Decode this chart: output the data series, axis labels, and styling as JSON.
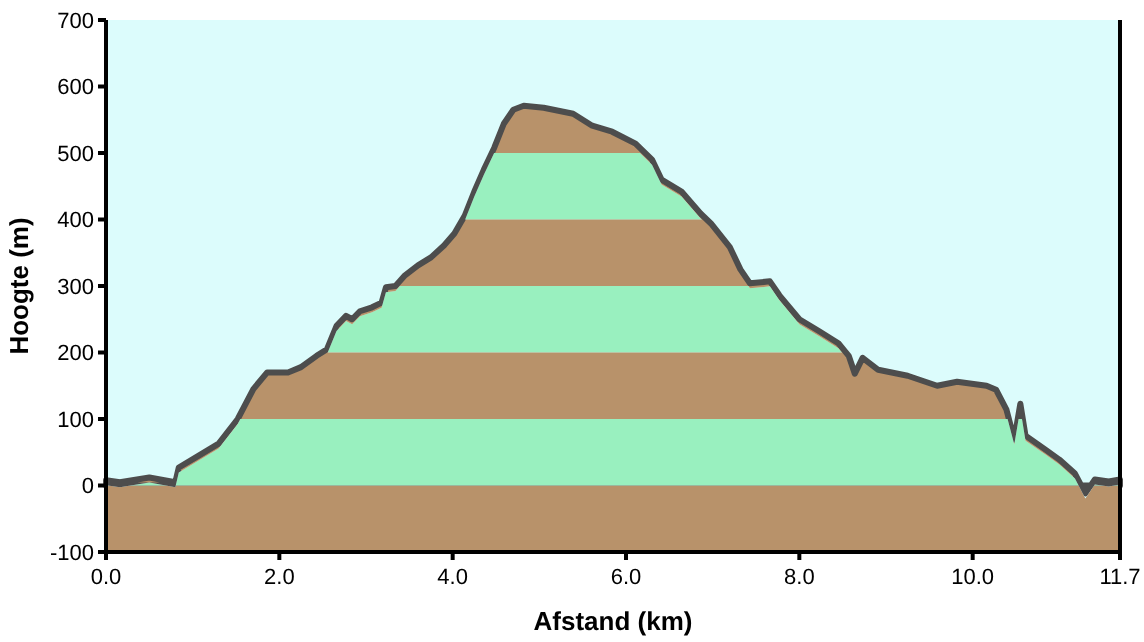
{
  "chart_data": {
    "type": "area",
    "xlabel": "Afstand   (km)",
    "ylabel": "Hoogte (m)",
    "x": [
      0,
      0.16,
      0.5,
      0.8,
      0.84,
      1.07,
      1.3,
      1.52,
      1.7,
      1.86,
      2.1,
      2.25,
      2.43,
      2.55,
      2.66,
      2.77,
      2.84,
      2.93,
      3.07,
      3.18,
      3.23,
      3.34,
      3.45,
      3.6,
      3.75,
      3.9,
      4.02,
      4.14,
      4.25,
      4.36,
      4.48,
      4.59,
      4.7,
      4.82,
      5.05,
      5.39,
      5.61,
      5.84,
      6.11,
      6.3,
      6.41,
      6.64,
      6.86,
      6.98,
      7.2,
      7.32,
      7.43,
      7.66,
      7.77,
      8.0,
      8.23,
      8.45,
      8.57,
      8.64,
      8.73,
      8.91,
      9.25,
      9.59,
      9.82,
      10.16,
      10.27,
      10.39,
      10.48,
      10.55,
      10.61,
      10.84,
      11.0,
      11.18,
      11.3,
      11.41,
      11.57,
      11.7
    ],
    "series": [
      {
        "color": "#b8926a",
        "values": [
          8,
          5,
          12,
          5,
          27,
          45,
          63,
          100,
          145,
          170,
          170,
          178,
          195,
          205,
          240,
          255,
          250,
          262,
          268,
          275,
          298,
          300,
          316,
          331,
          343,
          361,
          379,
          406,
          442,
          475,
          508,
          544,
          565,
          571,
          568,
          559,
          541,
          532,
          514,
          490,
          460,
          442,
          409,
          394,
          358,
          325,
          304,
          307,
          286,
          250,
          232,
          214,
          195,
          168,
          192,
          174,
          165,
          150,
          156,
          150,
          144,
          114,
          69,
          123,
          75,
          54,
          39,
          18,
          -12,
          9,
          6,
          9
        ]
      }
    ],
    "bands": [
      {
        "axis": "y",
        "from": -100,
        "to": 0,
        "color": "#b8926a"
      },
      {
        "axis": "y",
        "from": 0,
        "to": 100,
        "color": "#99f0bf"
      },
      {
        "axis": "y",
        "from": 200,
        "to": 300,
        "color": "#99f0bf"
      },
      {
        "axis": "y",
        "from": 400,
        "to": 500,
        "color": "#99f0bf"
      }
    ],
    "xlim": [
      0,
      11.7
    ],
    "xticks": [
      {
        "value": 0,
        "label": "0.0"
      },
      {
        "value": 2,
        "label": "2.0"
      },
      {
        "value": 4,
        "label": "4.0"
      },
      {
        "value": 6,
        "label": "6.0"
      },
      {
        "value": 8,
        "label": "8.0"
      },
      {
        "value": 10,
        "label": "10.0"
      },
      11.7
    ],
    "ylim": [
      -100,
      700
    ],
    "yticks": [
      -100,
      0,
      100,
      200,
      300,
      400,
      500,
      600,
      700
    ],
    "grid": false
  }
}
